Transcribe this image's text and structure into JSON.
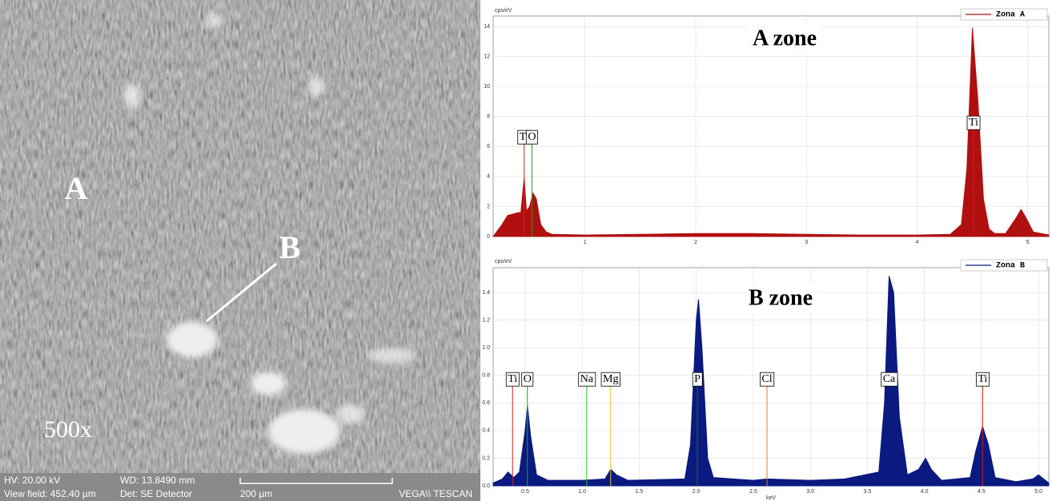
{
  "micrograph": {
    "region_a": "A",
    "region_b": "B",
    "magnification": "500x",
    "info": [
      "HV:  20.00 kV",
      "WD: 13.8490 mm",
      "View field: 452.40 µm",
      "Det: SE Detector",
      "200 µm",
      "VEGA\\\\ TESCAN"
    ]
  },
  "chart_data": [
    {
      "type": "line",
      "title": "A zone",
      "y_label": "cps/eV",
      "fill": true,
      "grid": true,
      "xlim": [
        0.17,
        5.19
      ],
      "xticks": [
        1,
        2,
        3,
        4,
        5
      ],
      "ylim": [
        0,
        14.7
      ],
      "yticks": [
        0,
        2,
        4,
        6,
        8,
        10,
        12,
        14
      ],
      "x": [
        0.17,
        0.2,
        0.25,
        0.3,
        0.35,
        0.4,
        0.42,
        0.45,
        0.47,
        0.5,
        0.53,
        0.56,
        0.6,
        0.65,
        0.7,
        1.0,
        1.5,
        2.0,
        2.5,
        3.0,
        3.5,
        4.0,
        4.3,
        4.4,
        4.45,
        4.5,
        4.55,
        4.6,
        4.65,
        4.7,
        4.8,
        4.9,
        4.94,
        4.98,
        5.05,
        5.19
      ],
      "series": [
        {
          "name": "Zona A",
          "color": "#b01010",
          "values": [
            0,
            0.3,
            0.8,
            1.4,
            1.5,
            1.6,
            1.6,
            3.9,
            1.7,
            2.0,
            2.9,
            2.5,
            0.8,
            0.3,
            0.15,
            0.1,
            0.15,
            0.2,
            0.2,
            0.15,
            0.1,
            0.1,
            0.15,
            0.8,
            4.5,
            13.9,
            9,
            2.5,
            0.5,
            0.2,
            0.2,
            1.3,
            1.8,
            1.3,
            0.3,
            0.1
          ]
        }
      ],
      "annotations": [
        {
          "label": "Ti",
          "x": 0.45,
          "color": "#d02020"
        },
        {
          "label": "O",
          "x": 0.52,
          "color": "#20a020"
        },
        {
          "label": "Ti",
          "x": 4.51,
          "color": "#d02020"
        }
      ]
    },
    {
      "type": "line",
      "title": "B zone",
      "y_label": "cps/eV",
      "x_label": "keV",
      "fill": true,
      "grid": true,
      "xlim": [
        0.22,
        5.09
      ],
      "xticks": [
        0.5,
        {
          "value": 1,
          "label": "1.0"
        },
        1.5,
        {
          "value": 2,
          "label": "2.0"
        },
        2.5,
        {
          "value": 3,
          "label": "3.0"
        },
        3.5,
        {
          "value": 4,
          "label": "4.0"
        },
        4.5,
        {
          "value": 5,
          "label": "5.0"
        }
      ],
      "ylim": [
        0,
        1.58
      ],
      "yticks": [
        {
          "value": 0,
          "label": "0.0"
        },
        0.2,
        0.4,
        0.6,
        0.8,
        {
          "value": 1,
          "label": "1.0"
        },
        1.2,
        1.4
      ],
      "x": [
        0.22,
        0.3,
        0.35,
        0.4,
        0.45,
        0.5,
        0.52,
        0.55,
        0.6,
        0.7,
        1.0,
        1.2,
        1.25,
        1.3,
        1.4,
        1.9,
        1.95,
        2.0,
        2.02,
        2.05,
        2.1,
        2.15,
        2.5,
        2.62,
        3.0,
        3.3,
        3.6,
        3.65,
        3.69,
        3.73,
        3.78,
        3.85,
        3.95,
        4.01,
        4.06,
        4.15,
        4.4,
        4.45,
        4.51,
        4.56,
        4.62,
        4.8,
        4.95,
        5.0,
        5.09
      ],
      "series": [
        {
          "name": "Zona B",
          "color": "#0a1a80",
          "values": [
            0.02,
            0.05,
            0.1,
            0.06,
            0.1,
            0.4,
            0.58,
            0.35,
            0.08,
            0.04,
            0.04,
            0.05,
            0.12,
            0.08,
            0.04,
            0.05,
            0.3,
            1.2,
            1.35,
            1.0,
            0.2,
            0.06,
            0.04,
            0.05,
            0.04,
            0.05,
            0.1,
            0.6,
            1.52,
            1.4,
            0.5,
            0.08,
            0.12,
            0.2,
            0.12,
            0.04,
            0.06,
            0.25,
            0.43,
            0.3,
            0.06,
            0.03,
            0.05,
            0.08,
            0.02
          ]
        }
      ],
      "annotations": [
        {
          "label": "Ti",
          "x": 0.39,
          "color": "#d02020"
        },
        {
          "label": "O",
          "x": 0.52,
          "color": "#20a020"
        },
        {
          "label": "Na",
          "x": 1.04,
          "color": "#30c030"
        },
        {
          "label": "Mg",
          "x": 1.25,
          "color": "#e0c020"
        },
        {
          "label": "P",
          "x": 2.01,
          "color": "#1a6a1a"
        },
        {
          "label": "Cl",
          "x": 2.62,
          "color": "#e08020"
        },
        {
          "label": "Ca",
          "x": 3.69,
          "color": "#0a1a80"
        },
        {
          "label": "Ti",
          "x": 4.51,
          "color": "#d02020"
        }
      ]
    }
  ]
}
